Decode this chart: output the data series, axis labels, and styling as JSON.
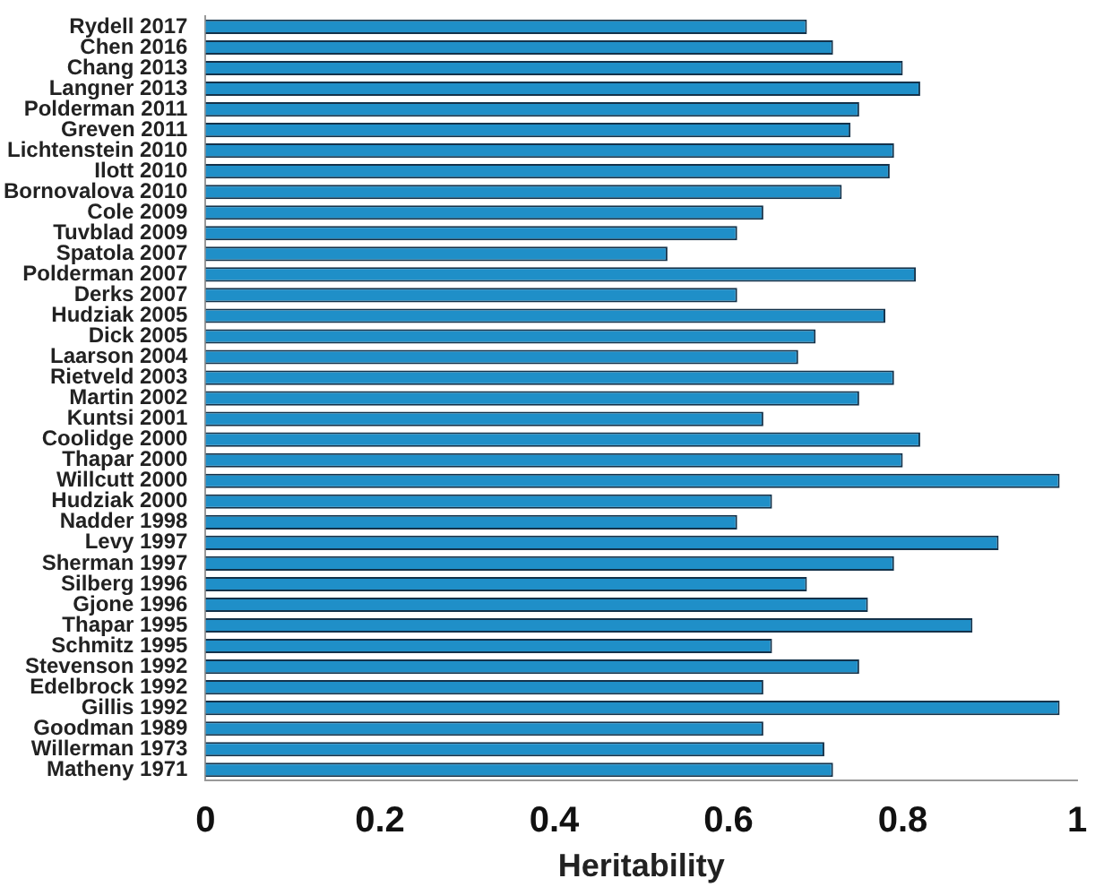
{
  "chart_data": {
    "type": "bar",
    "orientation": "horizontal",
    "xlabel": "Heritability",
    "categories": [
      "Rydell 2017",
      "Chen 2016",
      "Chang 2013",
      "Langner 2013",
      "Polderman 2011",
      "Greven 2011",
      "Lichtenstein 2010",
      "Ilott 2010",
      "Bornovalova 2010",
      "Cole 2009",
      "Tuvblad 2009",
      "Spatola 2007",
      "Polderman 2007",
      "Derks 2007",
      "Hudziak 2005",
      "Dick 2005",
      "Laarson 2004",
      "Rietveld 2003",
      "Martin 2002",
      "Kuntsi 2001",
      "Coolidge 2000",
      "Thapar 2000",
      "Willcutt 2000",
      "Hudziak 2000",
      "Nadder 1998",
      "Levy 1997",
      "Sherman 1997",
      "Silberg 1996",
      "Gjone 1996",
      "Thapar 1995",
      "Schmitz 1995",
      "Stevenson 1992",
      "Edelbrock 1992",
      "Gillis 1992",
      "Goodman 1989",
      "Willerman 1973",
      "Matheny 1971"
    ],
    "values": [
      0.69,
      0.72,
      0.8,
      0.82,
      0.75,
      0.74,
      0.79,
      0.785,
      0.73,
      0.64,
      0.61,
      0.53,
      0.815,
      0.61,
      0.78,
      0.7,
      0.68,
      0.79,
      0.75,
      0.64,
      0.82,
      0.8,
      0.98,
      0.65,
      0.61,
      0.91,
      0.79,
      0.69,
      0.76,
      0.88,
      0.65,
      0.75,
      0.64,
      0.98,
      0.64,
      0.71,
      0.72
    ],
    "color": "#1f8fc8",
    "xlim": [
      0,
      1
    ],
    "xticks": [
      0,
      0.2,
      0.4,
      0.6,
      0.8,
      1
    ],
    "grid": false,
    "legend": false
  }
}
